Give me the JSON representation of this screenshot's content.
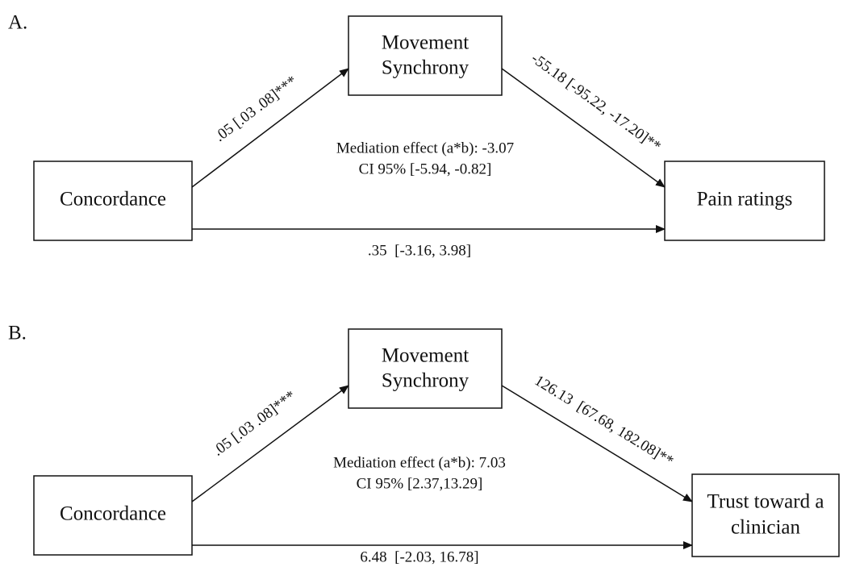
{
  "panels": [
    {
      "label": "A.",
      "mediator": [
        "Movement",
        "Synchrony"
      ],
      "predictor": [
        "Concordance"
      ],
      "outcome": [
        "Pain ratings"
      ],
      "path_a": ".05 [.03 .08]***",
      "path_b": "-55.18 [-95.22, -17.20]**",
      "mediation": [
        "Mediation effect (a*b): -3.07",
        "CI 95% [-5.94, -0.82]"
      ],
      "direct": ".35  [-3.16, 3.98]"
    },
    {
      "label": "B.",
      "mediator": [
        "Movement",
        "Synchrony"
      ],
      "predictor": [
        "Concordance"
      ],
      "outcome": [
        "Trust toward a",
        "clinician"
      ],
      "path_a": ".05 [.03 .08]***",
      "path_b": "126.13  [67.68, 182.08]**",
      "mediation": [
        "Mediation effect (a*b): 7.03",
        "CI 95% [2.37,13.29]"
      ],
      "direct": "6.48  [-2.03, 16.78]"
    }
  ]
}
